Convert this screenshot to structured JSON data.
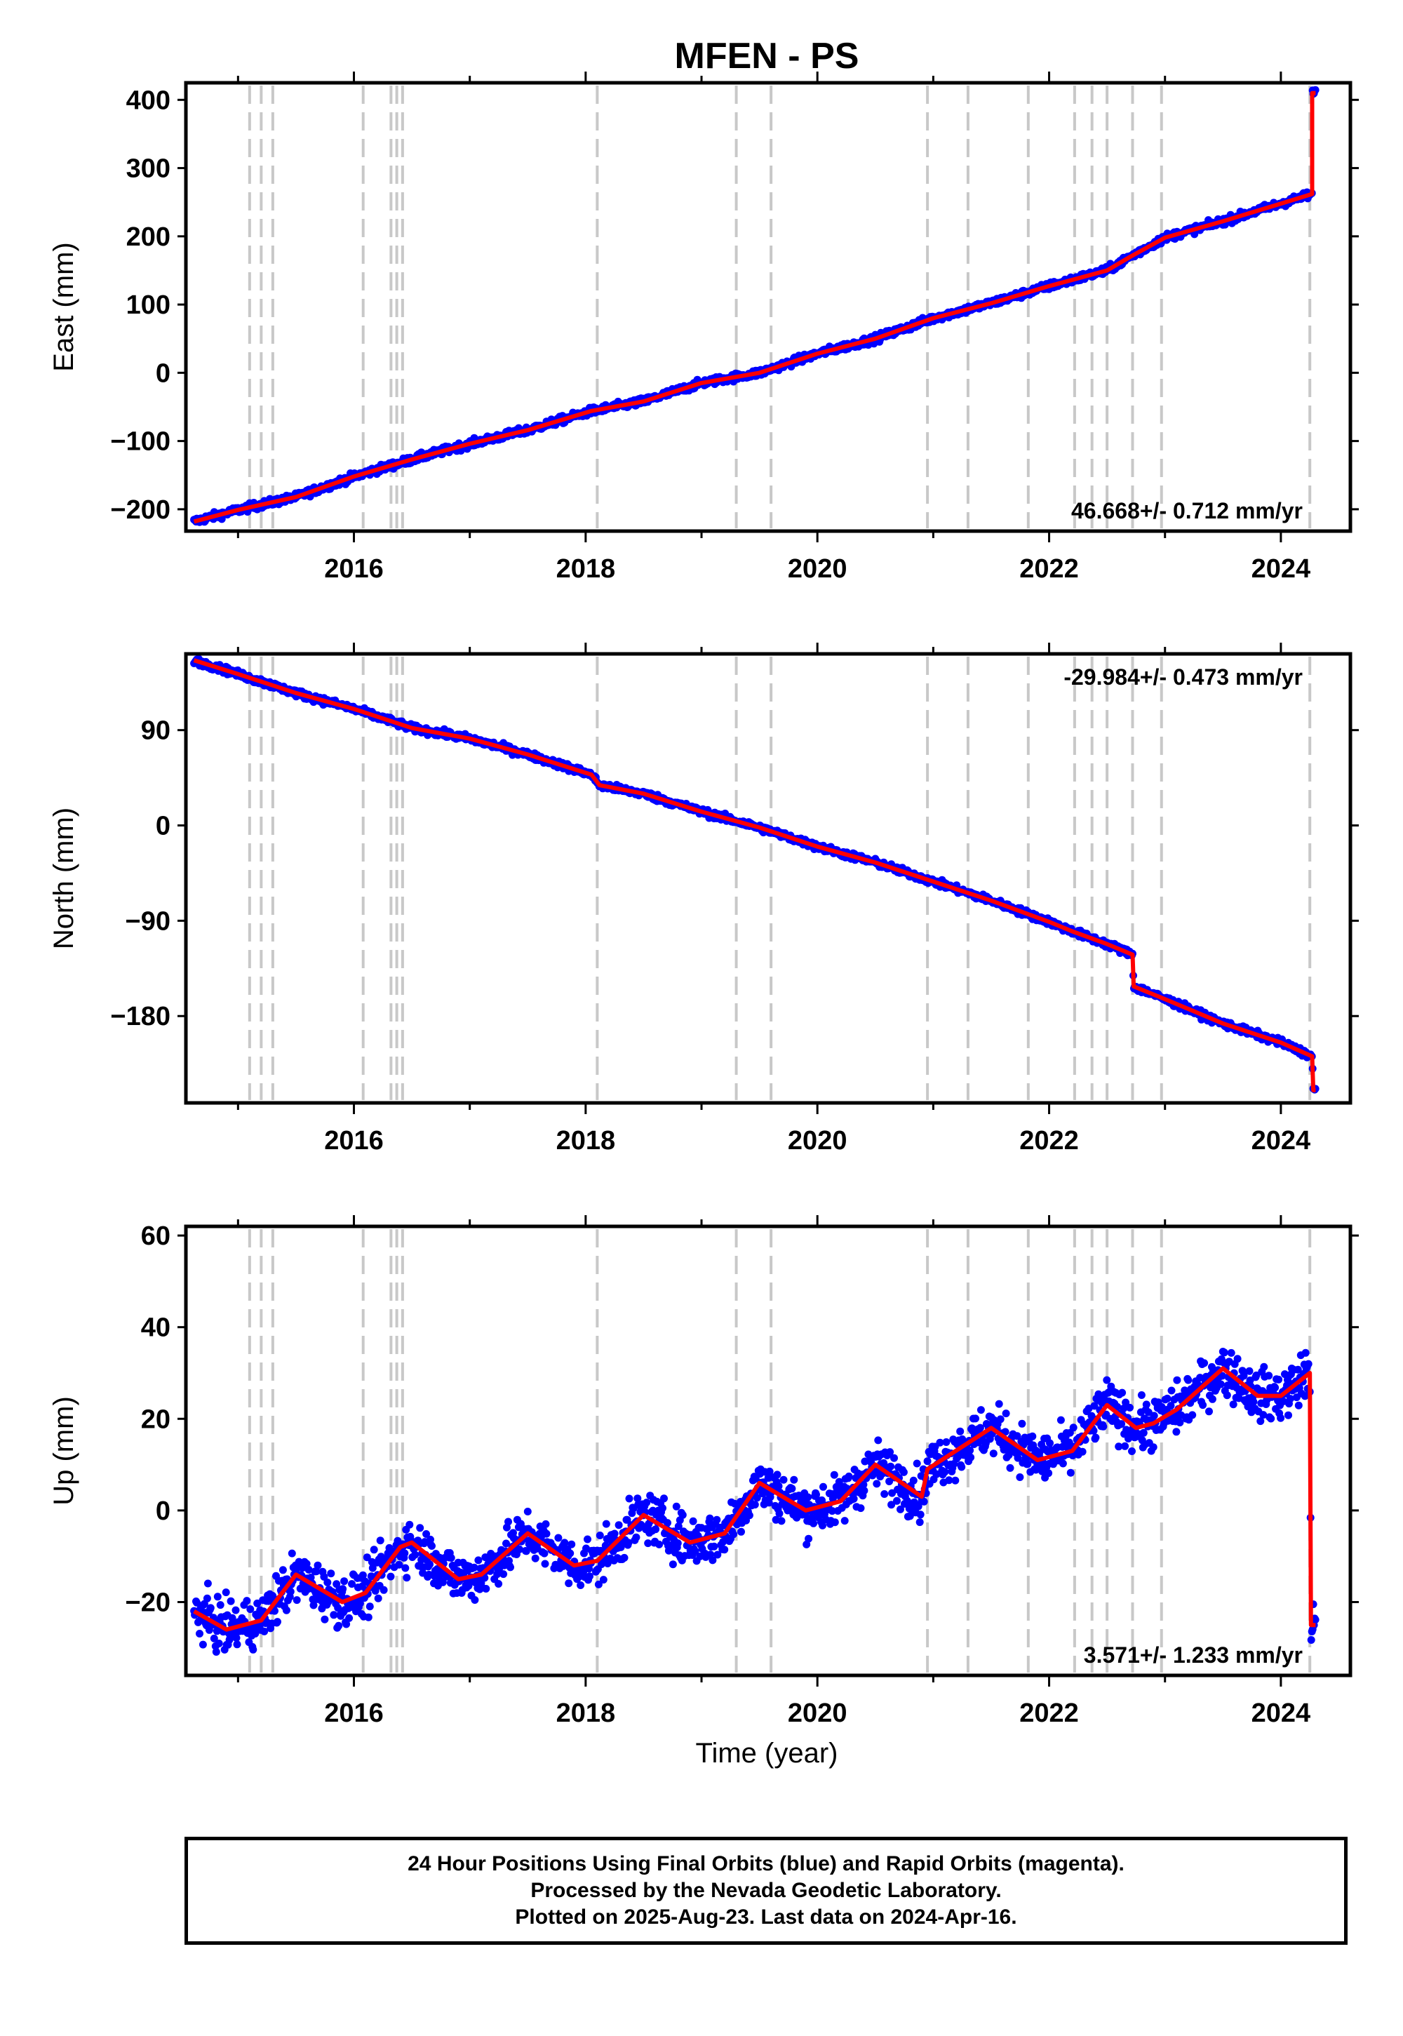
{
  "title": "MFEN - PS",
  "xlabel": "Time (year)",
  "footer": [
    "24 Hour Positions Using Final Orbits (blue) and Rapid Orbits (magenta).",
    "Processed by the Nevada Geodetic Laboratory.",
    "Plotted on 2025-Aug-23. Last data on 2024-Apr-16."
  ],
  "colors": {
    "points": "#0000ff",
    "fit": "#ff0000",
    "steps": "#c8c8c8",
    "axes": "#000000"
  },
  "chart_data": [
    {
      "type": "scatter",
      "name": "east",
      "ylabel": "East (mm)",
      "xlim": [
        2014.55,
        2024.6
      ],
      "ylim": [
        -232,
        425
      ],
      "yticks": [
        -200,
        -100,
        0,
        100,
        200,
        300,
        400
      ],
      "xticks": [
        2016,
        2018,
        2020,
        2022,
        2024
      ],
      "rate_label": "46.668+/- 0.712 mm/yr",
      "rate_position": "bottom-right",
      "step_epochs": [
        2015.1,
        2015.2,
        2015.3,
        2016.08,
        2016.32,
        2016.37,
        2016.42,
        2018.1,
        2019.3,
        2019.6,
        2020.95,
        2021.3,
        2021.82,
        2022.22,
        2022.37,
        2022.5,
        2022.72,
        2022.97,
        2024.25
      ],
      "trend": [
        [
          2014.62,
          -218
        ],
        [
          2015.0,
          -201
        ],
        [
          2015.5,
          -182
        ],
        [
          2016.0,
          -152
        ],
        [
          2016.5,
          -127
        ],
        [
          2017.0,
          -104
        ],
        [
          2017.5,
          -84
        ],
        [
          2018.05,
          -56
        ],
        [
          2018.5,
          -42
        ],
        [
          2019.0,
          -15
        ],
        [
          2019.5,
          0
        ],
        [
          2020.0,
          28
        ],
        [
          2020.5,
          50
        ],
        [
          2021.0,
          80
        ],
        [
          2021.5,
          102
        ],
        [
          2022.0,
          127
        ],
        [
          2022.5,
          150
        ],
        [
          2022.7,
          170
        ],
        [
          2023.0,
          198
        ],
        [
          2023.5,
          222
        ],
        [
          2024.0,
          248
        ],
        [
          2024.27,
          262
        ],
        [
          2024.27,
          410
        ],
        [
          2024.3,
          410
        ]
      ],
      "scatter_amplitude": 5
    },
    {
      "type": "scatter",
      "name": "north",
      "ylabel": "North (mm)",
      "xlim": [
        2014.55,
        2024.6
      ],
      "ylim": [
        -262,
        162
      ],
      "yticks": [
        -180,
        -90,
        0,
        90
      ],
      "xticks": [
        2016,
        2018,
        2020,
        2022,
        2024
      ],
      "rate_label": "-29.984+/- 0.473 mm/yr",
      "rate_position": "top-right",
      "step_epochs": [
        2015.1,
        2015.2,
        2015.3,
        2016.08,
        2016.32,
        2016.37,
        2016.42,
        2018.1,
        2019.3,
        2019.6,
        2020.95,
        2021.3,
        2021.82,
        2022.22,
        2022.37,
        2022.5,
        2022.72,
        2022.97,
        2024.25
      ],
      "trend": [
        [
          2014.62,
          156
        ],
        [
          2015.0,
          143
        ],
        [
          2015.5,
          125
        ],
        [
          2016.0,
          110
        ],
        [
          2016.5,
          92
        ],
        [
          2017.0,
          82
        ],
        [
          2017.5,
          67
        ],
        [
          2018.05,
          48
        ],
        [
          2018.12,
          38
        ],
        [
          2018.5,
          30
        ],
        [
          2019.0,
          13
        ],
        [
          2019.5,
          -2
        ],
        [
          2020.0,
          -20
        ],
        [
          2020.5,
          -35
        ],
        [
          2021.0,
          -53
        ],
        [
          2021.5,
          -71
        ],
        [
          2022.0,
          -91
        ],
        [
          2022.2,
          -100
        ],
        [
          2022.5,
          -112
        ],
        [
          2022.72,
          -122
        ],
        [
          2022.73,
          -152
        ],
        [
          2023.0,
          -164
        ],
        [
          2023.5,
          -187
        ],
        [
          2024.0,
          -205
        ],
        [
          2024.27,
          -218
        ],
        [
          2024.28,
          -250
        ],
        [
          2024.3,
          -250
        ]
      ],
      "scatter_amplitude": 3
    },
    {
      "type": "scatter",
      "name": "up",
      "ylabel": "Up (mm)",
      "xlim": [
        2014.55,
        2024.6
      ],
      "ylim": [
        -36,
        62
      ],
      "yticks": [
        -20,
        0,
        20,
        40,
        60
      ],
      "xticks": [
        2016,
        2018,
        2020,
        2022,
        2024
      ],
      "rate_label": "3.571+/- 1.233 mm/yr",
      "rate_position": "bottom-right",
      "step_epochs": [
        2015.1,
        2015.2,
        2015.3,
        2016.08,
        2016.32,
        2016.37,
        2016.42,
        2018.1,
        2019.3,
        2019.6,
        2020.95,
        2021.3,
        2021.82,
        2022.22,
        2022.37,
        2022.5,
        2022.72,
        2022.97,
        2024.25
      ],
      "trend": [
        [
          2014.62,
          -22
        ],
        [
          2014.9,
          -26
        ],
        [
          2015.2,
          -24
        ],
        [
          2015.5,
          -14
        ],
        [
          2015.9,
          -20
        ],
        [
          2016.1,
          -18
        ],
        [
          2016.4,
          -8
        ],
        [
          2016.5,
          -7
        ],
        [
          2016.9,
          -15
        ],
        [
          2017.1,
          -14
        ],
        [
          2017.5,
          -5
        ],
        [
          2017.9,
          -12
        ],
        [
          2018.1,
          -11
        ],
        [
          2018.5,
          -1
        ],
        [
          2018.9,
          -7
        ],
        [
          2019.2,
          -5
        ],
        [
          2019.5,
          6
        ],
        [
          2019.9,
          0
        ],
        [
          2020.2,
          2
        ],
        [
          2020.5,
          10
        ],
        [
          2020.9,
          3
        ],
        [
          2020.95,
          9
        ],
        [
          2021.5,
          18
        ],
        [
          2021.9,
          11
        ],
        [
          2022.2,
          13
        ],
        [
          2022.5,
          23
        ],
        [
          2022.75,
          18
        ],
        [
          2022.9,
          19
        ],
        [
          2023.1,
          22
        ],
        [
          2023.5,
          31
        ],
        [
          2023.8,
          25
        ],
        [
          2024.0,
          25
        ],
        [
          2024.25,
          30
        ],
        [
          2024.26,
          -25
        ],
        [
          2024.3,
          -25
        ]
      ],
      "scatter_amplitude": 5
    }
  ]
}
